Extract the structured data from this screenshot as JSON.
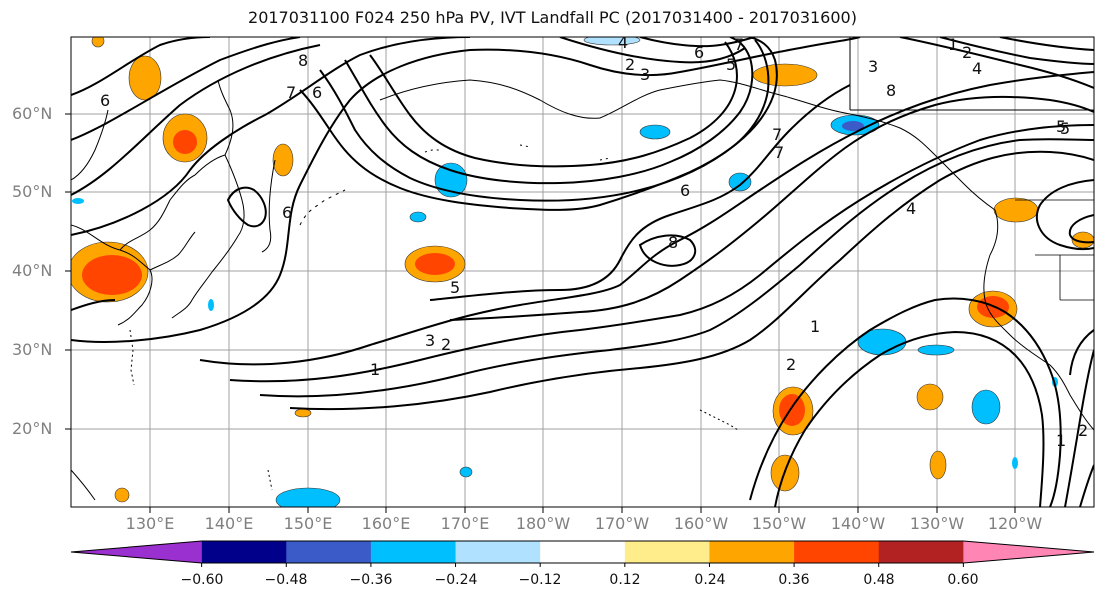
{
  "title": "2017031100 F024 250 hPa PV, IVT Landfall PC (2017031400 - 2017031600)",
  "lat_labels": [
    "60°N",
    "50°N",
    "40°N",
    "30°N",
    "20°N"
  ],
  "lon_labels": [
    "130°E",
    "140°E",
    "150°E",
    "160°E",
    "170°E",
    "180°W",
    "170°W",
    "160°W",
    "150°W",
    "140°W",
    "130°W",
    "120°W"
  ],
  "colorbar": {
    "tick_labels": [
      "−0.60",
      "−0.48",
      "−0.36",
      "−0.24",
      "−0.12",
      "0.12",
      "0.24",
      "0.36",
      "0.48",
      "0.60"
    ],
    "colors": [
      "#9b30d0",
      "#00008b",
      "#3a5bc8",
      "#00bfff",
      "#b0e2ff",
      "#ffffff",
      "#ffec8b",
      "#ffa500",
      "#ff4500",
      "#b22222",
      "#ff85b5"
    ]
  },
  "contour_labels": [
    "8",
    "7",
    "6",
    "6",
    "4",
    "2",
    "3",
    "6",
    "7",
    "5",
    "1",
    "2",
    "4",
    "3",
    "8",
    "7",
    "6",
    "7",
    "5",
    "4",
    "6",
    "8",
    "5",
    "3",
    "2",
    "1",
    "1",
    "2",
    "5",
    "1",
    "2"
  ]
}
